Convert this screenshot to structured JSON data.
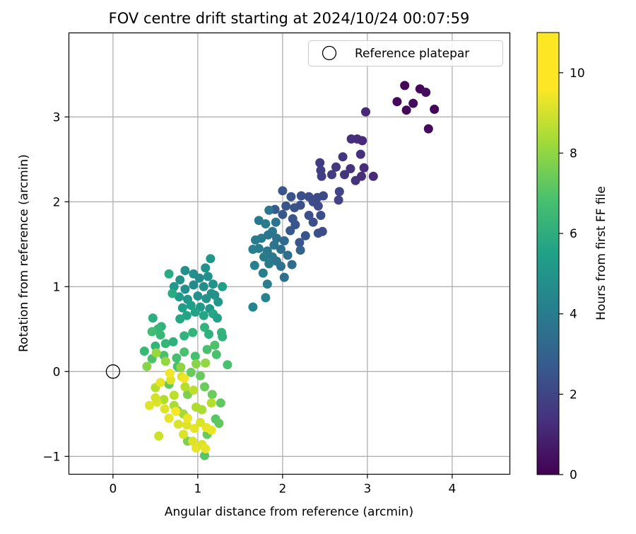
{
  "chart_data": {
    "type": "scatter",
    "title": "FOV centre drift starting at 2024/10/24 00:07:59",
    "xlabel": "Angular distance from reference (arcmin)",
    "ylabel": "Rotation from reference (arcmin)",
    "xlim": [
      -0.52,
      4.68
    ],
    "ylim": [
      -1.21,
      3.99
    ],
    "xticks": [
      0,
      1,
      2,
      3,
      4
    ],
    "yticks": [
      -1,
      0,
      1,
      2,
      3
    ],
    "grid": true,
    "legend": {
      "position": "top-right",
      "entries": [
        "Reference platepar"
      ]
    },
    "reference_point": {
      "x": 0,
      "y": 0,
      "label": "Reference platepar"
    },
    "colorbar": {
      "label": "Hours from first FF file",
      "range": [
        0,
        11
      ],
      "ticks": [
        0,
        2,
        4,
        6,
        8,
        10
      ],
      "colormap": "viridis"
    },
    "series": [
      {
        "color_by": "Hours from first FF file",
        "points": [
          [
            3.44,
            3.37,
            0.1
          ],
          [
            3.62,
            3.33,
            0.2
          ],
          [
            3.69,
            3.29,
            0.3
          ],
          [
            3.35,
            3.18,
            0.2
          ],
          [
            3.54,
            3.16,
            0.3
          ],
          [
            3.79,
            3.09,
            0.1
          ],
          [
            3.46,
            3.08,
            0.2
          ],
          [
            3.72,
            2.86,
            0.3
          ],
          [
            2.98,
            3.06,
            1.2
          ],
          [
            2.81,
            2.74,
            1.5
          ],
          [
            2.88,
            2.74,
            1.4
          ],
          [
            2.94,
            2.72,
            1.3
          ],
          [
            2.71,
            2.53,
            1.7
          ],
          [
            2.92,
            2.56,
            1.5
          ],
          [
            2.44,
            2.46,
            1.9
          ],
          [
            2.63,
            2.41,
            1.8
          ],
          [
            2.8,
            2.39,
            1.6
          ],
          [
            2.96,
            2.4,
            1.4
          ],
          [
            3.07,
            2.3,
            1.3
          ],
          [
            2.45,
            2.37,
            2.0
          ],
          [
            2.58,
            2.32,
            1.9
          ],
          [
            2.73,
            2.32,
            1.7
          ],
          [
            2.86,
            2.25,
            1.6
          ],
          [
            2.93,
            2.3,
            1.5
          ],
          [
            2.46,
            2.3,
            2.0
          ],
          [
            2.0,
            2.13,
            2.9
          ],
          [
            2.1,
            2.06,
            2.8
          ],
          [
            2.22,
            2.07,
            2.7
          ],
          [
            2.31,
            2.06,
            2.6
          ],
          [
            2.41,
            2.05,
            2.5
          ],
          [
            2.48,
            2.07,
            2.4
          ],
          [
            2.67,
            2.12,
            2.3
          ],
          [
            2.36,
            2.0,
            2.5
          ],
          [
            2.04,
            1.95,
            2.9
          ],
          [
            2.14,
            1.93,
            2.8
          ],
          [
            2.21,
            1.96,
            2.7
          ],
          [
            2.42,
            1.95,
            2.5
          ],
          [
            2.66,
            2.02,
            2.2
          ],
          [
            1.91,
            1.91,
            3.1
          ],
          [
            2.0,
            1.85,
            3.0
          ],
          [
            2.12,
            1.8,
            2.9
          ],
          [
            2.31,
            1.84,
            2.7
          ],
          [
            2.45,
            1.84,
            2.6
          ],
          [
            2.15,
            1.73,
            2.9
          ],
          [
            2.36,
            1.76,
            2.7
          ],
          [
            2.27,
            1.6,
            2.8
          ],
          [
            2.42,
            1.63,
            2.7
          ],
          [
            2.47,
            1.65,
            2.6
          ],
          [
            2.09,
            1.66,
            3.0
          ],
          [
            2.2,
            1.52,
            3.0
          ],
          [
            1.84,
            1.9,
            4.3
          ],
          [
            1.72,
            1.78,
            4.4
          ],
          [
            1.8,
            1.74,
            4.5
          ],
          [
            1.92,
            1.76,
            4.2
          ],
          [
            1.88,
            1.65,
            4.4
          ],
          [
            1.75,
            1.57,
            4.5
          ],
          [
            1.68,
            1.55,
            4.6
          ],
          [
            1.83,
            1.61,
            4.3
          ],
          [
            1.93,
            1.57,
            4.2
          ],
          [
            2.02,
            1.54,
            3.8
          ],
          [
            1.72,
            1.45,
            4.6
          ],
          [
            1.82,
            1.42,
            4.4
          ],
          [
            1.9,
            1.49,
            4.3
          ],
          [
            1.98,
            1.44,
            4.0
          ],
          [
            1.65,
            1.44,
            4.8
          ],
          [
            1.78,
            1.35,
            4.5
          ],
          [
            1.88,
            1.35,
            4.4
          ],
          [
            2.06,
            1.37,
            4.0
          ],
          [
            1.93,
            1.3,
            4.3
          ],
          [
            1.98,
            1.24,
            4.1
          ],
          [
            2.11,
            1.26,
            3.8
          ],
          [
            1.67,
            1.25,
            4.8
          ],
          [
            1.84,
            1.27,
            4.5
          ],
          [
            2.21,
            1.43,
            3.5
          ],
          [
            1.77,
            1.16,
            4.6
          ],
          [
            2.02,
            1.11,
            4.0
          ],
          [
            1.82,
            1.03,
            4.7
          ],
          [
            1.65,
            0.76,
            5.0
          ],
          [
            1.8,
            0.87,
            4.9
          ],
          [
            0.85,
            1.19,
            5.5
          ],
          [
            1.09,
            1.22,
            5.6
          ],
          [
            1.15,
            1.33,
            5.8
          ],
          [
            0.79,
            1.08,
            5.6
          ],
          [
            0.95,
            1.15,
            5.4
          ],
          [
            1.02,
            1.1,
            5.3
          ],
          [
            1.12,
            1.12,
            5.5
          ],
          [
            1.18,
            1.03,
            5.6
          ],
          [
            1.29,
            1.0,
            6.2
          ],
          [
            0.72,
            1.0,
            5.9
          ],
          [
            0.85,
            0.97,
            5.4
          ],
          [
            0.95,
            1.02,
            5.3
          ],
          [
            1.07,
            1.0,
            5.4
          ],
          [
            1.16,
            0.92,
            5.5
          ],
          [
            1.2,
            0.9,
            5.6
          ],
          [
            0.78,
            0.88,
            6.0
          ],
          [
            0.88,
            0.85,
            5.8
          ],
          [
            1.0,
            0.89,
            5.5
          ],
          [
            1.1,
            0.86,
            5.6
          ],
          [
            1.24,
            0.82,
            5.8
          ],
          [
            0.82,
            0.75,
            6.2
          ],
          [
            0.92,
            0.78,
            6.1
          ],
          [
            1.03,
            0.76,
            5.9
          ],
          [
            1.14,
            0.74,
            5.9
          ],
          [
            0.7,
            0.92,
            6.7
          ],
          [
            0.87,
            0.66,
            6.4
          ],
          [
            0.97,
            0.7,
            6.3
          ],
          [
            1.07,
            0.66,
            6.4
          ],
          [
            1.18,
            0.68,
            6.5
          ],
          [
            1.23,
            0.63,
            6.2
          ],
          [
            0.79,
            0.62,
            6.5
          ],
          [
            0.66,
            1.15,
            6.8
          ],
          [
            0.57,
            0.53,
            7.1
          ],
          [
            0.53,
            0.5,
            7.3
          ],
          [
            0.46,
            0.47,
            7.6
          ],
          [
            0.56,
            0.43,
            7.4
          ],
          [
            0.5,
            0.3,
            7.2
          ],
          [
            0.62,
            0.33,
            7.3
          ],
          [
            0.71,
            0.35,
            7.0
          ],
          [
            0.84,
            0.42,
            7.1
          ],
          [
            0.94,
            0.46,
            7.2
          ],
          [
            1.08,
            0.52,
            7.2
          ],
          [
            1.13,
            0.44,
            7.0
          ],
          [
            1.28,
            0.46,
            7.2
          ],
          [
            1.29,
            0.41,
            7.1
          ],
          [
            0.37,
            0.24,
            7.4
          ],
          [
            0.46,
            0.15,
            7.9
          ],
          [
            0.6,
            0.19,
            7.8
          ],
          [
            0.75,
            0.16,
            7.7
          ],
          [
            0.84,
            0.23,
            7.8
          ],
          [
            0.97,
            0.18,
            7.7
          ],
          [
            1.11,
            0.26,
            7.8
          ],
          [
            1.2,
            0.31,
            7.9
          ],
          [
            1.22,
            0.2,
            7.8
          ],
          [
            0.47,
            0.63,
            6.9
          ],
          [
            1.35,
            0.08,
            7.8
          ],
          [
            0.76,
            0.06,
            7.8
          ],
          [
            0.92,
            -0.01,
            8.4
          ],
          [
            1.03,
            -0.05,
            8.4
          ],
          [
            1.08,
            -0.18,
            8.5
          ],
          [
            1.17,
            -0.27,
            8.5
          ],
          [
            1.27,
            -0.37,
            8.3
          ],
          [
            1.21,
            -0.56,
            8.1
          ],
          [
            1.25,
            -0.61,
            8.3
          ],
          [
            1.11,
            -0.74,
            8.4
          ],
          [
            1.08,
            -0.99,
            8.1
          ],
          [
            0.66,
            -0.15,
            8.3
          ],
          [
            0.88,
            -0.27,
            8.8
          ],
          [
            0.76,
            -0.46,
            8.9
          ],
          [
            0.88,
            -0.82,
            8.8
          ],
          [
            0.4,
            0.06,
            9.0
          ],
          [
            0.51,
            0.22,
            9.3
          ],
          [
            0.62,
            0.12,
            9.2
          ],
          [
            0.8,
            0.05,
            9.1
          ],
          [
            0.98,
            0.09,
            9.0
          ],
          [
            1.09,
            0.1,
            9.2
          ],
          [
            0.72,
            -0.4,
            9.6
          ],
          [
            0.83,
            -0.5,
            9.5
          ],
          [
            0.98,
            -0.42,
            9.7
          ],
          [
            1.05,
            -0.45,
            9.6
          ],
          [
            1.16,
            -0.37,
            9.8
          ],
          [
            0.5,
            -0.19,
            9.8
          ],
          [
            0.6,
            -0.33,
            9.7
          ],
          [
            0.72,
            -0.28,
            9.9
          ],
          [
            0.85,
            -0.18,
            9.8
          ],
          [
            0.95,
            -0.22,
            9.9
          ],
          [
            0.52,
            -0.36,
            10.4
          ],
          [
            0.43,
            -0.4,
            10.5
          ],
          [
            0.5,
            -0.31,
            10.3
          ],
          [
            0.61,
            -0.44,
            10.5
          ],
          [
            0.66,
            -0.55,
            10.6
          ],
          [
            0.77,
            -0.62,
            10.4
          ],
          [
            0.87,
            -0.63,
            10.5
          ],
          [
            0.96,
            -0.67,
            10.6
          ],
          [
            1.03,
            -0.6,
            10.4
          ],
          [
            1.1,
            -0.66,
            10.6
          ],
          [
            1.16,
            -0.69,
            10.7
          ],
          [
            0.56,
            -0.13,
            10.6
          ],
          [
            0.68,
            -0.1,
            10.5
          ],
          [
            0.81,
            -0.06,
            10.4
          ],
          [
            0.67,
            -0.02,
            10.8
          ],
          [
            0.84,
            -0.08,
            10.8
          ],
          [
            0.54,
            -0.76,
            10.2
          ],
          [
            0.83,
            -0.74,
            10.4
          ],
          [
            0.98,
            -0.9,
            10.6
          ],
          [
            1.05,
            -0.86,
            10.5
          ],
          [
            1.09,
            -0.91,
            10.6
          ],
          [
            0.94,
            -0.82,
            10.5
          ],
          [
            0.74,
            -0.47,
            10.9
          ],
          [
            0.88,
            -0.55,
            10.7
          ]
        ]
      }
    ]
  }
}
